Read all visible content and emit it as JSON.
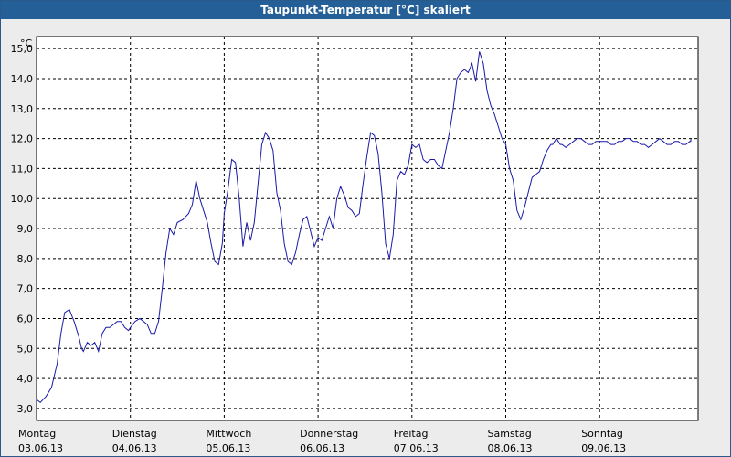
{
  "window": {
    "title": "Taupunkt-Temperatur [°C] skaliert"
  },
  "chart_data": {
    "type": "line",
    "title": "Taupunkt-Temperatur [°C] skaliert",
    "ylabel": "°C",
    "xlabel": "",
    "ylim": [
      2.6,
      15.4
    ],
    "yticks": [
      "15,0",
      "14,0",
      "13,0",
      "12,0",
      "11,0",
      "10,0",
      "9,0",
      "8,0",
      "7,0",
      "6,0",
      "5,0",
      "4,0",
      "3,0"
    ],
    "ytick_values": [
      15,
      14,
      13,
      12,
      11,
      10,
      9,
      8,
      7,
      6,
      5,
      4,
      3
    ],
    "xticks": [
      {
        "day": "Montag",
        "date": "03.06.13"
      },
      {
        "day": "Dienstag",
        "date": "04.06.13"
      },
      {
        "day": "Mittwoch",
        "date": "05.06.13"
      },
      {
        "day": "Donnerstag",
        "date": "06.06.13"
      },
      {
        "day": "Freitag",
        "date": "07.06.13"
      },
      {
        "day": "Samstag",
        "date": "08.06.13"
      },
      {
        "day": "Sonntag",
        "date": "09.06.13"
      }
    ],
    "grid": true,
    "line_color": "#1a1aa8",
    "series": [
      {
        "name": "",
        "x": [
          0.0,
          0.04,
          0.1,
          0.16,
          0.22,
          0.26,
          0.3,
          0.35,
          0.4,
          0.45,
          0.48,
          0.5,
          0.54,
          0.58,
          0.62,
          0.66,
          0.7,
          0.74,
          0.78,
          0.82,
          0.86,
          0.9,
          0.94,
          0.98,
          1.0,
          1.05,
          1.1,
          1.14,
          1.18,
          1.22,
          1.26,
          1.3,
          1.34,
          1.38,
          1.42,
          1.46,
          1.5,
          1.56,
          1.62,
          1.66,
          1.7,
          1.74,
          1.78,
          1.82,
          1.86,
          1.9,
          1.94,
          1.98,
          2.0,
          2.04,
          2.08,
          2.12,
          2.16,
          2.2,
          2.24,
          2.28,
          2.32,
          2.36,
          2.4,
          2.44,
          2.48,
          2.52,
          2.56,
          2.6,
          2.64,
          2.68,
          2.72,
          2.76,
          2.8,
          2.84,
          2.88,
          2.92,
          2.96,
          3.0,
          3.04,
          3.08,
          3.12,
          3.16,
          3.2,
          3.24,
          3.28,
          3.32,
          3.36,
          3.4,
          3.44,
          3.48,
          3.52,
          3.56,
          3.6,
          3.64,
          3.68,
          3.72,
          3.76,
          3.8,
          3.84,
          3.88,
          3.92,
          3.96,
          4.0,
          4.04,
          4.08,
          4.12,
          4.16,
          4.2,
          4.24,
          4.28,
          4.32,
          4.36,
          4.4,
          4.44,
          4.48,
          4.52,
          4.56,
          4.6,
          4.64,
          4.68,
          4.72,
          4.76,
          4.8,
          4.84,
          4.88,
          4.92,
          4.96,
          5.0,
          5.04,
          5.08,
          5.12,
          5.16,
          5.2,
          5.24,
          5.28,
          5.32,
          5.36,
          5.4,
          5.44,
          5.48,
          5.5,
          5.52,
          5.54,
          5.56,
          5.58,
          5.6,
          5.64,
          5.68,
          5.72,
          5.76,
          5.8,
          5.84,
          5.88,
          5.92,
          5.96,
          6.0,
          6.04,
          6.08,
          6.12,
          6.16,
          6.2,
          6.24,
          6.28,
          6.32,
          6.36,
          6.4,
          6.44,
          6.48,
          6.52,
          6.56,
          6.6,
          6.64,
          6.68,
          6.72,
          6.76,
          6.8,
          6.84,
          6.88,
          6.92,
          6.96,
          7.0,
          7.04,
          7.08,
          7.12
        ],
        "y": [
          3.3,
          3.2,
          3.4,
          3.7,
          4.5,
          5.5,
          6.2,
          6.3,
          5.9,
          5.4,
          5.0,
          4.9,
          5.2,
          5.1,
          5.2,
          4.9,
          5.5,
          5.7,
          5.7,
          5.8,
          5.9,
          5.9,
          5.7,
          5.6,
          5.7,
          5.9,
          6.0,
          5.9,
          5.8,
          5.5,
          5.5,
          5.9,
          7.0,
          8.2,
          9.0,
          8.8,
          9.2,
          9.3,
          9.5,
          9.8,
          10.6,
          10.0,
          9.6,
          9.2,
          8.5,
          7.9,
          7.8,
          8.5,
          9.5,
          10.3,
          11.3,
          11.2,
          10.0,
          8.4,
          9.2,
          8.6,
          9.2,
          10.5,
          11.8,
          12.2,
          12.0,
          11.6,
          10.2,
          9.6,
          8.5,
          7.9,
          7.8,
          8.2,
          8.8,
          9.3,
          9.4,
          8.9,
          8.4,
          8.7,
          8.6,
          9.0,
          9.4,
          9.0,
          10.0,
          10.4,
          10.1,
          9.7,
          9.6,
          9.4,
          9.5,
          10.5,
          11.4,
          12.2,
          12.1,
          11.5,
          10.2,
          8.5,
          8.0,
          8.8,
          10.6,
          10.9,
          10.8,
          11.1,
          11.8,
          11.7,
          11.8,
          11.3,
          11.2,
          11.3,
          11.3,
          11.1,
          11.0,
          11.6,
          12.2,
          13.0,
          14.0,
          14.2,
          14.3,
          14.2,
          14.5,
          13.9,
          14.9,
          14.5,
          13.6,
          13.1,
          12.8,
          12.4,
          12.0,
          11.8,
          11.0,
          10.6,
          9.6,
          9.3,
          9.7,
          10.2,
          10.7,
          10.8,
          10.9,
          11.3,
          11.6,
          11.8,
          11.8,
          11.9,
          12.0,
          11.9,
          11.8,
          11.8,
          11.7,
          11.8,
          11.9,
          12.0,
          12.0,
          11.9,
          11.8,
          11.8,
          11.9,
          11.9,
          11.9,
          11.9,
          11.8,
          11.8,
          11.9,
          11.9,
          12.0,
          12.0,
          11.9,
          11.9,
          11.8,
          11.8,
          11.7,
          11.8,
          11.9,
          12.0,
          11.9,
          11.8,
          11.8,
          11.9,
          11.9,
          11.8,
          11.8,
          11.9,
          11.9,
          11.9,
          12.0,
          11.9
        ]
      }
    ]
  }
}
